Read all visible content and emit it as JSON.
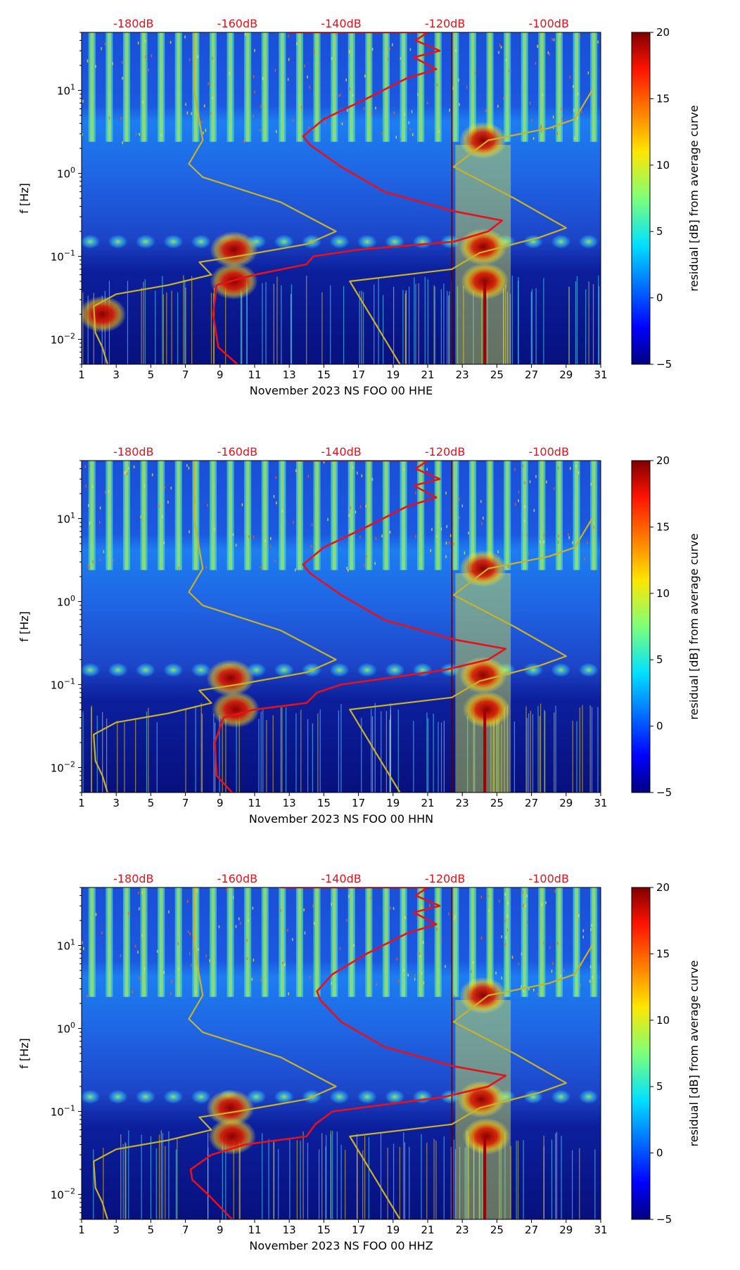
{
  "chart_data": [
    {
      "type": "heatmap",
      "panel": "HHE",
      "xlabel": "November 2023 NS FOO 00 HHE",
      "ylabel": "f [Hz]",
      "xlim": [
        1,
        31
      ],
      "ylim": [
        0.005,
        50
      ],
      "yscale": "log",
      "xticks": [
        "1",
        "3",
        "5",
        "7",
        "9",
        "11",
        "13",
        "15",
        "17",
        "19",
        "21",
        "23",
        "25",
        "27",
        "29",
        "31"
      ],
      "yticks": [
        {
          "value": 0.01,
          "base": "10",
          "exp": "−2"
        },
        {
          "value": 0.1,
          "base": "10",
          "exp": "−1"
        },
        {
          "value": 1,
          "base": "10",
          "exp": "0"
        },
        {
          "value": 10,
          "base": "10",
          "exp": "1"
        }
      ],
      "top_axis_labels": [
        {
          "x": 4,
          "label": "-180dB"
        },
        {
          "x": 10,
          "label": "-160dB"
        },
        {
          "x": 16,
          "label": "-140dB"
        },
        {
          "x": 22,
          "label": "-120dB"
        },
        {
          "x": 28,
          "label": "-100dB"
        }
      ],
      "colorbar": {
        "label": "residual [dB] from average curve",
        "range": [
          -5,
          20
        ],
        "ticks": [
          "−5",
          "0",
          "5",
          "10",
          "15",
          "20"
        ]
      },
      "marker_day": 22.4,
      "hot_spots": [
        {
          "x": 24.2,
          "f": 0.13
        },
        {
          "x": 24.3,
          "f": 0.05
        },
        {
          "x": 24.2,
          "f": 2.5
        },
        {
          "x": 2.2,
          "f": 0.02
        },
        {
          "x": 9.8,
          "f": 0.12
        },
        {
          "x": 9.8,
          "f": 0.05
        }
      ],
      "series": [
        {
          "name": "average PSD curve",
          "color": "#e8101a",
          "points": [
            [
              10,
              0.005
            ],
            [
              8.9,
              0.008
            ],
            [
              8.6,
              0.02
            ],
            [
              8.8,
              0.045
            ],
            [
              11,
              0.06
            ],
            [
              14,
              0.08
            ],
            [
              14.4,
              0.1
            ],
            [
              17,
              0.12
            ],
            [
              22.5,
              0.15
            ],
            [
              24.5,
              0.2
            ],
            [
              25.3,
              0.27
            ],
            [
              22.5,
              0.35
            ],
            [
              18.5,
              0.6
            ],
            [
              16,
              1.2
            ],
            [
              14.2,
              2.2
            ],
            [
              13.8,
              2.8
            ],
            [
              15,
              4.5
            ],
            [
              17.5,
              8
            ],
            [
              19.8,
              14
            ],
            [
              21.5,
              18
            ],
            [
              20.2,
              25
            ],
            [
              21.7,
              30
            ],
            [
              20.3,
              40
            ],
            [
              21,
              50
            ],
            [
              13,
              50
            ]
          ]
        },
        {
          "name": "noise model",
          "color": "#c8b22a",
          "points": [
            [
              2.5,
              0.005
            ],
            [
              2.2,
              0.008
            ],
            [
              1.8,
              0.012
            ],
            [
              1.7,
              0.025
            ],
            [
              3,
              0.035
            ],
            [
              6,
              0.045
            ],
            [
              8.5,
              0.06
            ],
            [
              7.8,
              0.085
            ],
            [
              10,
              0.1
            ],
            [
              14,
              0.14
            ],
            [
              15.7,
              0.2
            ],
            [
              12.5,
              0.45
            ],
            [
              8,
              0.9
            ],
            [
              7.2,
              1.3
            ],
            [
              8,
              2.5
            ],
            [
              7.5,
              10
            ],
            [
              7.5,
              50
            ]
          ]
        },
        {
          "name": "noise model (right)",
          "color": "#c8b22a",
          "points": [
            [
              19.4,
              0.005
            ],
            [
              16.5,
              0.05
            ],
            [
              22.4,
              0.07
            ],
            [
              24,
              0.11
            ],
            [
              27.5,
              0.17
            ],
            [
              29,
              0.22
            ],
            [
              26,
              0.5
            ],
            [
              22.5,
              1.2
            ],
            [
              24.5,
              2.5
            ],
            [
              28,
              3.5
            ],
            [
              29.5,
              4.5
            ],
            [
              30.5,
              10
            ]
          ]
        }
      ]
    },
    {
      "type": "heatmap",
      "panel": "HHN",
      "xlabel": "November 2023 NS FOO 00 HHN",
      "ylabel": "f [Hz]",
      "xlim": [
        1,
        31
      ],
      "ylim": [
        0.005,
        50
      ],
      "yscale": "log",
      "xticks": [
        "1",
        "3",
        "5",
        "7",
        "9",
        "11",
        "13",
        "15",
        "17",
        "19",
        "21",
        "23",
        "25",
        "27",
        "29",
        "31"
      ],
      "yticks": [
        {
          "value": 0.01,
          "base": "10",
          "exp": "−2"
        },
        {
          "value": 0.1,
          "base": "10",
          "exp": "−1"
        },
        {
          "value": 1,
          "base": "10",
          "exp": "0"
        },
        {
          "value": 10,
          "base": "10",
          "exp": "1"
        }
      ],
      "top_axis_labels": [
        {
          "x": 4,
          "label": "-180dB"
        },
        {
          "x": 10,
          "label": "-160dB"
        },
        {
          "x": 16,
          "label": "-140dB"
        },
        {
          "x": 22,
          "label": "-120dB"
        },
        {
          "x": 28,
          "label": "-100dB"
        }
      ],
      "colorbar": {
        "label": "residual [dB] from average curve",
        "range": [
          -5,
          20
        ],
        "ticks": [
          "−5",
          "0",
          "5",
          "10",
          "15",
          "20"
        ]
      },
      "marker_day": 22.4,
      "hot_spots": [
        {
          "x": 24.2,
          "f": 0.13
        },
        {
          "x": 24.4,
          "f": 0.05
        },
        {
          "x": 24.2,
          "f": 2.5
        },
        {
          "x": 9.9,
          "f": 0.05
        },
        {
          "x": 9.6,
          "f": 0.12
        }
      ],
      "series": [
        {
          "name": "average PSD curve",
          "color": "#e8101a",
          "points": [
            [
              9.7,
              0.005
            ],
            [
              8.8,
              0.008
            ],
            [
              8.7,
              0.02
            ],
            [
              9.2,
              0.04
            ],
            [
              11,
              0.05
            ],
            [
              14,
              0.06
            ],
            [
              14.6,
              0.08
            ],
            [
              16,
              0.1
            ],
            [
              22,
              0.15
            ],
            [
              24.5,
              0.2
            ],
            [
              25.5,
              0.27
            ],
            [
              22.5,
              0.35
            ],
            [
              18.5,
              0.6
            ],
            [
              16,
              1.2
            ],
            [
              14.2,
              2.2
            ],
            [
              13.8,
              2.8
            ],
            [
              15,
              4.5
            ],
            [
              17.5,
              8
            ],
            [
              19.8,
              14
            ],
            [
              21.5,
              18
            ],
            [
              20.2,
              25
            ],
            [
              21.7,
              30
            ],
            [
              20.3,
              40
            ],
            [
              21,
              50
            ],
            [
              13,
              50
            ]
          ]
        },
        {
          "name": "noise model",
          "color": "#c8b22a",
          "points": [
            [
              2.5,
              0.005
            ],
            [
              2.2,
              0.008
            ],
            [
              1.8,
              0.012
            ],
            [
              1.7,
              0.025
            ],
            [
              3,
              0.035
            ],
            [
              6,
              0.045
            ],
            [
              8.5,
              0.06
            ],
            [
              7.8,
              0.085
            ],
            [
              10,
              0.1
            ],
            [
              14,
              0.14
            ],
            [
              15.7,
              0.2
            ],
            [
              12.5,
              0.45
            ],
            [
              8,
              0.9
            ],
            [
              7.2,
              1.3
            ],
            [
              8,
              2.5
            ],
            [
              7.5,
              10
            ],
            [
              7.5,
              50
            ]
          ]
        },
        {
          "name": "noise model (right)",
          "color": "#c8b22a",
          "points": [
            [
              19.4,
              0.005
            ],
            [
              16.5,
              0.05
            ],
            [
              22.4,
              0.07
            ],
            [
              24,
              0.11
            ],
            [
              27.5,
              0.17
            ],
            [
              29,
              0.22
            ],
            [
              26,
              0.5
            ],
            [
              22.5,
              1.2
            ],
            [
              24.5,
              2.5
            ],
            [
              28,
              3.5
            ],
            [
              29.5,
              4.5
            ],
            [
              30.5,
              10
            ]
          ]
        }
      ]
    },
    {
      "type": "heatmap",
      "panel": "HHZ",
      "xlabel": "November 2023 NS FOO 00 HHZ",
      "ylabel": "f [Hz]",
      "xlim": [
        1,
        31
      ],
      "ylim": [
        0.005,
        50
      ],
      "yscale": "log",
      "xticks": [
        "1",
        "3",
        "5",
        "7",
        "9",
        "11",
        "13",
        "15",
        "17",
        "19",
        "21",
        "23",
        "25",
        "27",
        "29",
        "31"
      ],
      "yticks": [
        {
          "value": 0.01,
          "base": "10",
          "exp": "−2"
        },
        {
          "value": 0.1,
          "base": "10",
          "exp": "−1"
        },
        {
          "value": 1,
          "base": "10",
          "exp": "0"
        },
        {
          "value": 10,
          "base": "10",
          "exp": "1"
        }
      ],
      "top_axis_labels": [
        {
          "x": 4,
          "label": "-180dB"
        },
        {
          "x": 10,
          "label": "-160dB"
        },
        {
          "x": 16,
          "label": "-140dB"
        },
        {
          "x": 22,
          "label": "-120dB"
        },
        {
          "x": 28,
          "label": "-100dB"
        }
      ],
      "colorbar": {
        "label": "residual [dB] from average curve",
        "range": [
          -5,
          20
        ],
        "ticks": [
          "−5",
          "0",
          "5",
          "10",
          "15",
          "20"
        ]
      },
      "marker_day": 22.4,
      "hot_spots": [
        {
          "x": 24.1,
          "f": 0.14
        },
        {
          "x": 24.4,
          "f": 0.05
        },
        {
          "x": 24.2,
          "f": 2.5
        },
        {
          "x": 9.6,
          "f": 0.11
        },
        {
          "x": 9.7,
          "f": 0.05
        }
      ],
      "series": [
        {
          "name": "average PSD curve",
          "color": "#e8101a",
          "points": [
            [
              9.7,
              0.005
            ],
            [
              8.3,
              0.01
            ],
            [
              7.4,
              0.015
            ],
            [
              7.3,
              0.02
            ],
            [
              8.5,
              0.03
            ],
            [
              10.5,
              0.04
            ],
            [
              14,
              0.05
            ],
            [
              14.5,
              0.07
            ],
            [
              15.5,
              0.1
            ],
            [
              22,
              0.15
            ],
            [
              24.5,
              0.2
            ],
            [
              25.5,
              0.27
            ],
            [
              22.5,
              0.35
            ],
            [
              18.5,
              0.6
            ],
            [
              16,
              1.2
            ],
            [
              14.8,
              2.2
            ],
            [
              14.6,
              2.8
            ],
            [
              15.5,
              4.5
            ],
            [
              17.5,
              8
            ],
            [
              19.8,
              14
            ],
            [
              21.5,
              18
            ],
            [
              20.2,
              25
            ],
            [
              21.7,
              30
            ],
            [
              20.3,
              40
            ],
            [
              21,
              50
            ],
            [
              12.5,
              50
            ]
          ]
        },
        {
          "name": "noise model",
          "color": "#c8b22a",
          "points": [
            [
              2.5,
              0.005
            ],
            [
              2.2,
              0.008
            ],
            [
              1.8,
              0.012
            ],
            [
              1.7,
              0.025
            ],
            [
              3,
              0.035
            ],
            [
              6,
              0.045
            ],
            [
              8.5,
              0.06
            ],
            [
              7.8,
              0.085
            ],
            [
              10,
              0.1
            ],
            [
              14,
              0.14
            ],
            [
              15.7,
              0.2
            ],
            [
              12.5,
              0.45
            ],
            [
              8,
              0.9
            ],
            [
              7.2,
              1.3
            ],
            [
              8,
              2.5
            ],
            [
              7.5,
              10
            ],
            [
              7.5,
              50
            ]
          ]
        },
        {
          "name": "noise model (right)",
          "color": "#c8b22a",
          "points": [
            [
              19.4,
              0.005
            ],
            [
              16.5,
              0.05
            ],
            [
              22.4,
              0.07
            ],
            [
              24,
              0.11
            ],
            [
              27.5,
              0.17
            ],
            [
              29,
              0.22
            ],
            [
              26,
              0.5
            ],
            [
              22.5,
              1.2
            ],
            [
              24.5,
              2.5
            ],
            [
              28,
              3.5
            ],
            [
              29.5,
              4.5
            ],
            [
              30.5,
              10
            ]
          ]
        }
      ]
    }
  ]
}
